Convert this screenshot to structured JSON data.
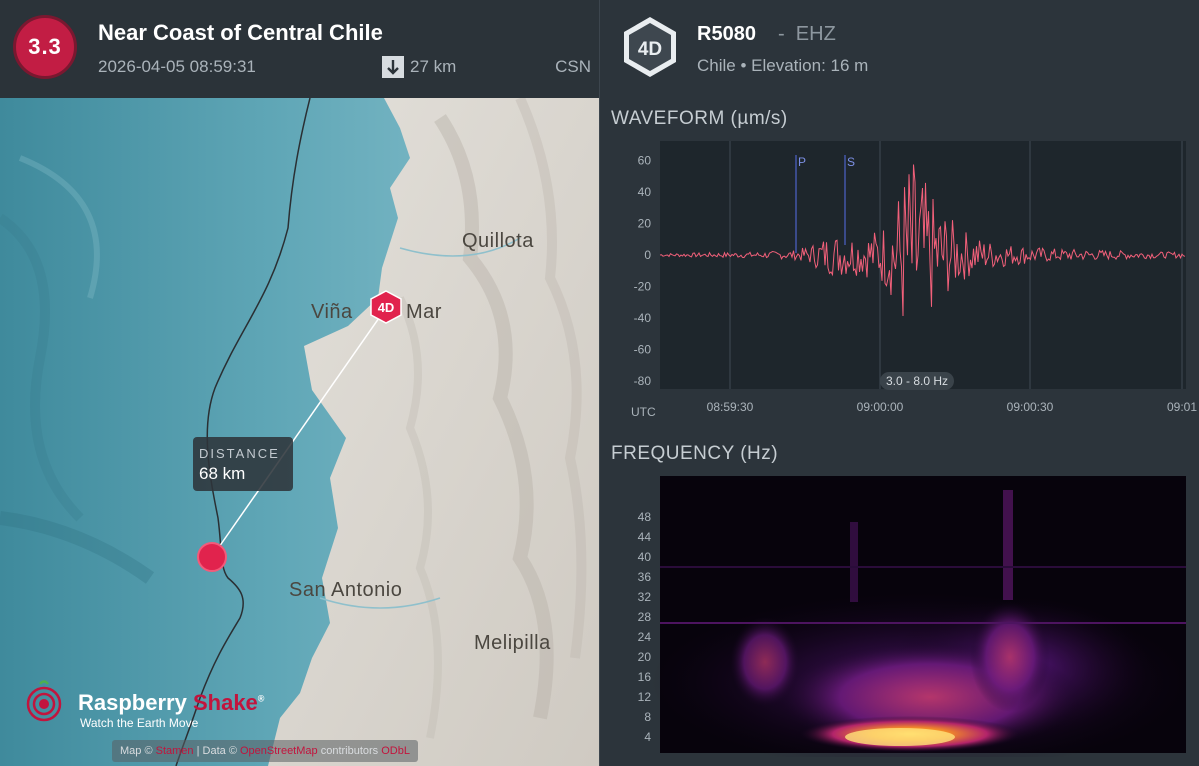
{
  "event": {
    "magnitude": "3.3",
    "title": "Near Coast of Central Chile",
    "time": "2026-04-05 08:59:31",
    "depth": "27 km",
    "agency": "CSN"
  },
  "map": {
    "cities": [
      "Quillota",
      "Viña",
      "Mar",
      "San Antonio",
      "Melipilla"
    ],
    "station_marker": "4D",
    "distance_title": "DISTANCE",
    "distance_value": "68 km",
    "brand_word1": "Raspberry",
    "brand_word2": "Shake",
    "brand_reg": "®",
    "brand_tagline": "Watch the Earth Move",
    "attribution": {
      "map_prefix": "Map ©",
      "map_link": "Stamen",
      "data_prefix": "| Data ©",
      "data_link": "OpenStreetMap",
      "contributors": "contributors",
      "license": "ODbL"
    }
  },
  "station": {
    "badge": "4D",
    "name": "R5080",
    "separator": "-",
    "channel": "EHZ",
    "location": "Chile • Elevation: 16 m"
  },
  "waveform": {
    "title": "WAVEFORM (µm/s)",
    "y_ticks": [
      "60",
      "40",
      "20",
      "0",
      "-20",
      "-40",
      "-60",
      "-80"
    ],
    "x_ticks": [
      "08:59:30",
      "09:00:00",
      "09:00:30",
      "09:01"
    ],
    "tz_label": "UTC",
    "p_label": "P",
    "s_label": "S",
    "filter": "3.0 - 8.0 Hz"
  },
  "frequency": {
    "title": "FREQUENCY (Hz)",
    "y_ticks": [
      "48",
      "44",
      "40",
      "36",
      "32",
      "28",
      "24",
      "20",
      "16",
      "12",
      "8",
      "4"
    ]
  },
  "chart_data": [
    {
      "type": "line",
      "title": "WAVEFORM (µm/s)",
      "xlabel": "UTC",
      "ylabel": "µm/s",
      "x_ticks": [
        "08:59:30",
        "09:00:00",
        "09:00:30",
        "09:01"
      ],
      "ylim": [
        -85,
        72
      ],
      "series": [
        {
          "x_seconds_after_08_59_16": [
            0,
            10,
            20,
            27,
            30,
            33,
            36,
            40,
            42,
            44,
            46,
            48,
            50,
            52,
            54,
            56,
            58,
            60,
            63,
            66,
            70,
            75,
            80,
            90,
            100,
            105
          ],
          "envelope_amplitude": [
            1,
            1.5,
            2,
            3,
            6,
            12,
            14,
            13,
            15,
            18,
            25,
            45,
            65,
            55,
            40,
            32,
            24,
            18,
            12,
            9,
            7,
            5,
            4,
            3,
            2,
            2
          ]
        }
      ],
      "annotations": {
        "P": "08:59:43",
        "S": "08:59:53",
        "filter": "3.0 - 8.0 Hz"
      },
      "grid": true
    },
    {
      "type": "heatmap",
      "title": "FREQUENCY (Hz)",
      "ylabel": "Hz",
      "ylim": [
        2,
        50
      ],
      "y_ticks": [
        4,
        8,
        12,
        16,
        20,
        24,
        28,
        32,
        36,
        40,
        44,
        48
      ]
    }
  ]
}
